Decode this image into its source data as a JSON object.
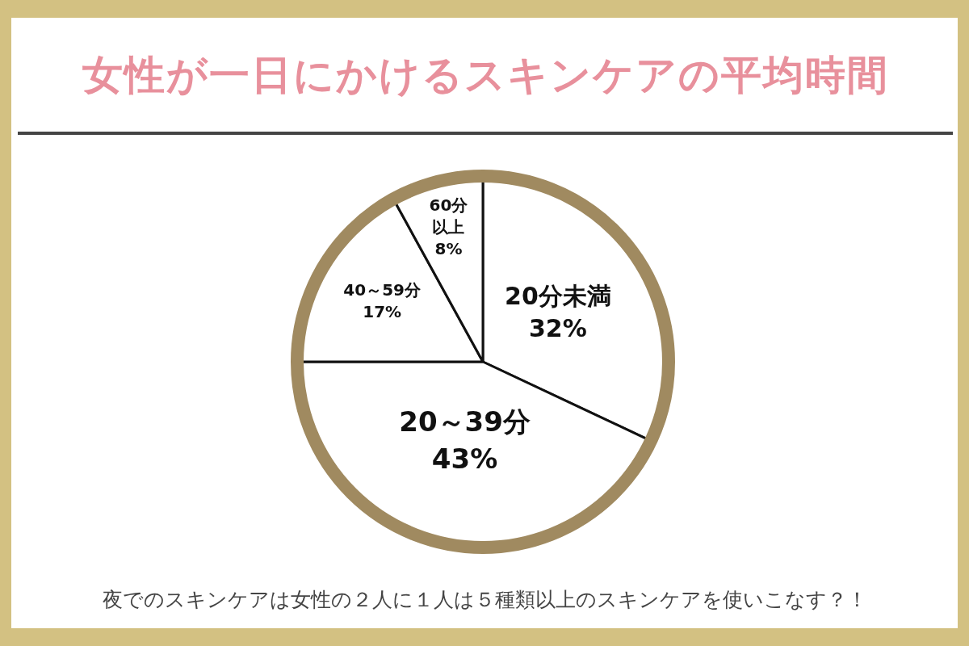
{
  "chart_data": {
    "type": "pie",
    "title": "女性が一日にかけるスキンケアの平均時間",
    "categories": [
      "20分未満",
      "20～39分",
      "40～59分",
      "60分以上"
    ],
    "values": [
      32,
      43,
      17,
      8
    ],
    "colors": [
      "#ffffff",
      "#ffffff",
      "#ffffff",
      "#ffffff"
    ],
    "value_labels": [
      "32%",
      "43%",
      "17%",
      "8%"
    ],
    "legend": false,
    "annotations": [
      "夜でのスキンケアは女性の２人に１人は５種類以上のスキンケアを使いこなす？！"
    ]
  }
}
